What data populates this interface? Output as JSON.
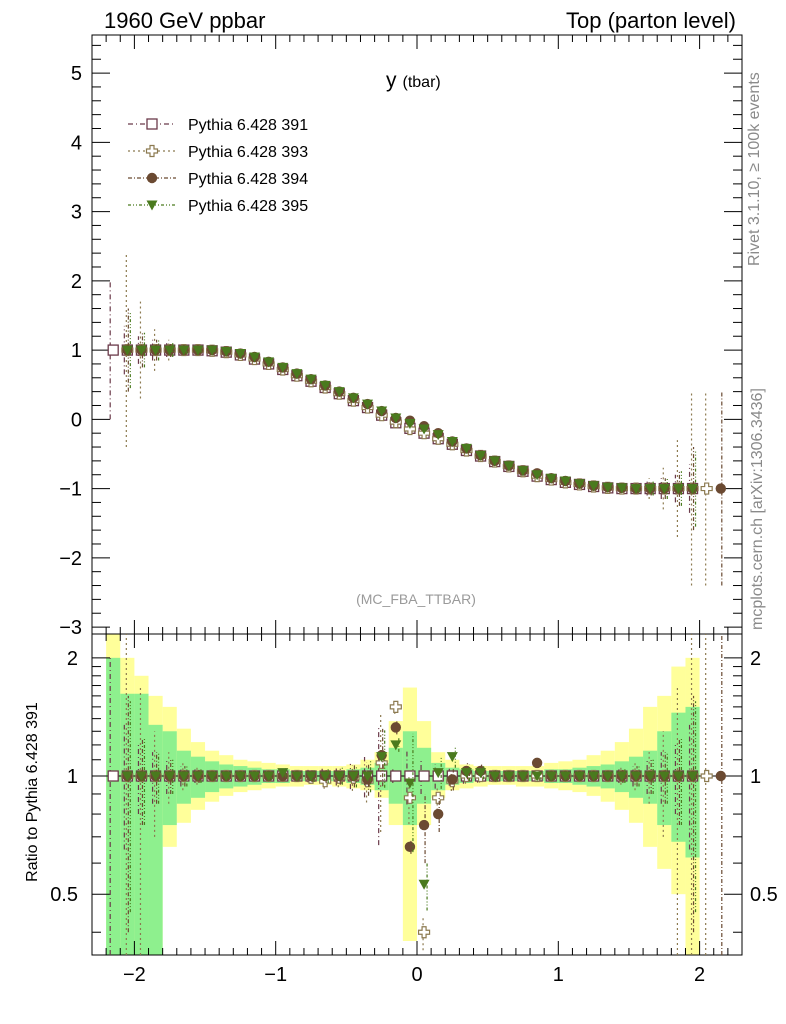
{
  "header": {
    "left": "1960 GeV ppbar",
    "right": "Top (parton level)"
  },
  "side_labels": {
    "rivet": "Rivet 3.1.10, ≥ 100k events",
    "mcplots": "mcplots.cern.ch [arXiv:1306.3436]"
  },
  "analysis_tag": "(MC_FBA_TTBAR)",
  "chart_data": [
    {
      "type": "scatter",
      "panel": "main",
      "title": "y",
      "title_suffix": "(tbar)",
      "xlabel": "",
      "ylabel": "",
      "xlim": [
        -2.3,
        2.3
      ],
      "ylim": [
        -3.1,
        5.55
      ],
      "x_ticks": [
        -2,
        -1,
        0,
        1,
        2
      ],
      "x_tick_labels": [
        "−2",
        "−1",
        "0",
        "1",
        "2"
      ],
      "y_ticks": [
        -3,
        -2,
        -1,
        0,
        1,
        2,
        3,
        4,
        5
      ],
      "y_tick_labels": [
        "−3",
        "−2",
        "−1",
        "0",
        "1",
        "2",
        "3",
        "4",
        "5"
      ],
      "legend_position": "top-left",
      "x": [
        -2.15,
        -2.05,
        -1.95,
        -1.85,
        -1.75,
        -1.65,
        -1.55,
        -1.45,
        -1.35,
        -1.25,
        -1.15,
        -1.05,
        -0.95,
        -0.85,
        -0.75,
        -0.65,
        -0.55,
        -0.45,
        -0.35,
        -0.25,
        -0.15,
        -0.05,
        0.05,
        0.15,
        0.25,
        0.35,
        0.45,
        0.55,
        0.65,
        0.75,
        0.85,
        0.95,
        1.05,
        1.15,
        1.25,
        1.35,
        1.45,
        1.55,
        1.65,
        1.75,
        1.85,
        1.95,
        2.05,
        2.15
      ],
      "series": [
        {
          "name": "Pythia 6.428 391",
          "color": "#6b3a4a",
          "marker": "open-square",
          "values": [
            1.0,
            1.0,
            1.0,
            1.0,
            1.0,
            1.0,
            1.0,
            0.99,
            0.97,
            0.93,
            0.87,
            0.8,
            0.72,
            0.63,
            0.55,
            0.46,
            0.37,
            0.27,
            0.17,
            0.06,
            -0.05,
            -0.13,
            -0.2,
            -0.28,
            -0.36,
            -0.45,
            -0.53,
            -0.61,
            -0.68,
            -0.75,
            -0.82,
            -0.87,
            -0.91,
            -0.94,
            -0.97,
            -0.99,
            -1.0,
            -1.0,
            -1.0,
            -1.0,
            -1.0,
            -1.0,
            null,
            null
          ],
          "errors": [
            1.0,
            0.35,
            0.2,
            0.15,
            0.1,
            0.06,
            0.04,
            0.03,
            0.02,
            0.02,
            0.02,
            0.02,
            0.02,
            0.02,
            0.02,
            0.02,
            0.02,
            0.02,
            0.02,
            0.02,
            0.02,
            0.02,
            0.02,
            0.02,
            0.02,
            0.02,
            0.02,
            0.02,
            0.02,
            0.02,
            0.02,
            0.02,
            0.02,
            0.02,
            0.02,
            0.03,
            0.04,
            0.06,
            0.1,
            0.15,
            0.2,
            0.35,
            null,
            null
          ]
        },
        {
          "name": "Pythia 6.428 393",
          "color": "#8c7a50",
          "marker": "open-cross",
          "values": [
            null,
            1.0,
            1.0,
            1.0,
            1.0,
            1.0,
            1.0,
            0.99,
            0.97,
            0.93,
            0.87,
            0.8,
            0.72,
            0.63,
            0.55,
            0.46,
            0.37,
            0.27,
            0.17,
            0.06,
            -0.04,
            -0.14,
            -0.2,
            -0.28,
            -0.36,
            -0.45,
            -0.53,
            -0.61,
            -0.68,
            -0.75,
            -0.82,
            -0.87,
            -0.91,
            -0.94,
            -0.97,
            -0.99,
            -1.0,
            -1.0,
            -1.0,
            -1.0,
            -1.0,
            -1.0,
            -1.0,
            null
          ],
          "errors": [
            null,
            1.4,
            0.7,
            0.3,
            0.15,
            0.08,
            0.05,
            0.03,
            0.02,
            0.02,
            0.02,
            0.02,
            0.02,
            0.02,
            0.02,
            0.02,
            0.02,
            0.02,
            0.02,
            0.02,
            0.02,
            0.02,
            0.02,
            0.02,
            0.02,
            0.02,
            0.02,
            0.02,
            0.02,
            0.02,
            0.02,
            0.02,
            0.02,
            0.02,
            0.02,
            0.03,
            0.05,
            0.08,
            0.15,
            0.3,
            0.7,
            1.4,
            1.4,
            null
          ]
        },
        {
          "name": "Pythia 6.428 394",
          "color": "#6b4a32",
          "marker": "filled-circle",
          "values": [
            null,
            1.0,
            1.0,
            1.0,
            1.0,
            1.0,
            1.0,
            1.0,
            0.98,
            0.95,
            0.9,
            0.83,
            0.75,
            0.66,
            0.58,
            0.49,
            0.4,
            0.31,
            0.22,
            0.12,
            0.02,
            -0.02,
            -0.1,
            -0.2,
            -0.32,
            -0.42,
            -0.52,
            -0.6,
            -0.67,
            -0.74,
            -0.78,
            -0.85,
            -0.89,
            -0.93,
            -0.96,
            -0.98,
            -0.99,
            -1.0,
            -1.0,
            -1.0,
            -1.0,
            -1.0,
            null,
            -1.0
          ],
          "errors": [
            null,
            0.6,
            0.25,
            0.15,
            0.1,
            0.06,
            0.04,
            0.03,
            0.02,
            0.02,
            0.02,
            0.02,
            0.02,
            0.02,
            0.02,
            0.02,
            0.02,
            0.02,
            0.02,
            0.02,
            0.02,
            0.02,
            0.02,
            0.02,
            0.02,
            0.02,
            0.02,
            0.02,
            0.02,
            0.02,
            0.02,
            0.02,
            0.02,
            0.02,
            0.02,
            0.03,
            0.04,
            0.06,
            0.1,
            0.15,
            0.25,
            0.6,
            null,
            1.4
          ]
        },
        {
          "name": "Pythia 6.428 395",
          "color": "#4a7a1e",
          "marker": "filled-triangle-down",
          "values": [
            null,
            1.0,
            1.0,
            1.0,
            1.0,
            1.0,
            1.0,
            1.0,
            0.98,
            0.95,
            0.9,
            0.83,
            0.75,
            0.66,
            0.58,
            0.49,
            0.4,
            0.31,
            0.22,
            0.12,
            0.02,
            -0.06,
            -0.14,
            -0.22,
            -0.32,
            -0.42,
            -0.52,
            -0.6,
            -0.67,
            -0.74,
            -0.8,
            -0.85,
            -0.89,
            -0.93,
            -0.96,
            -0.98,
            -0.99,
            -1.0,
            -1.0,
            -1.0,
            -1.0,
            -1.0,
            null,
            null
          ],
          "errors": [
            null,
            0.55,
            0.25,
            0.15,
            0.1,
            0.06,
            0.04,
            0.03,
            0.02,
            0.02,
            0.02,
            0.02,
            0.02,
            0.02,
            0.02,
            0.02,
            0.02,
            0.02,
            0.02,
            0.02,
            0.02,
            0.02,
            0.02,
            0.02,
            0.02,
            0.02,
            0.02,
            0.02,
            0.02,
            0.02,
            0.02,
            0.02,
            0.02,
            0.02,
            0.02,
            0.03,
            0.04,
            0.06,
            0.1,
            0.15,
            0.25,
            0.55,
            null,
            null
          ]
        }
      ]
    },
    {
      "type": "scatter",
      "panel": "ratio",
      "ylabel": "Ratio to Pythia 6.428 391",
      "xlim": [
        -2.3,
        2.3
      ],
      "ylim": [
        0.35,
        2.3
      ],
      "log_y": true,
      "x_ticks": [
        -2,
        -1,
        0,
        1,
        2
      ],
      "x_tick_labels": [
        "−2",
        "−1",
        "0",
        "1",
        "2"
      ],
      "y_ticks": [
        0.5,
        1,
        2
      ],
      "y_tick_labels": [
        "0.5",
        "1",
        "2"
      ],
      "reference_line": 1,
      "band_edges": [
        -2.2,
        -2.1,
        -2.0,
        -1.9,
        -1.8,
        -1.7,
        -1.6,
        -1.5,
        -1.4,
        -1.3,
        -1.2,
        -1.1,
        -1.0,
        -0.9,
        -0.8,
        -0.7,
        -0.6,
        -0.5,
        -0.4,
        -0.3,
        -0.2,
        -0.1,
        0.0,
        0.1,
        0.2,
        0.3,
        0.4,
        0.5,
        0.6,
        0.7,
        0.8,
        0.9,
        1.0,
        1.1,
        1.2,
        1.3,
        1.4,
        1.5,
        1.6,
        1.7,
        1.8,
        1.9,
        2.0
      ],
      "band_inner": [
        [
          0.35,
          2.0
        ],
        [
          0.35,
          1.62
        ],
        [
          0.35,
          1.62
        ],
        [
          0.35,
          1.35
        ],
        [
          0.75,
          1.3
        ],
        [
          0.85,
          1.16
        ],
        [
          0.88,
          1.12
        ],
        [
          0.91,
          1.09
        ],
        [
          0.93,
          1.07
        ],
        [
          0.94,
          1.06
        ],
        [
          0.95,
          1.05
        ],
        [
          0.96,
          1.04
        ],
        [
          0.96,
          1.04
        ],
        [
          0.97,
          1.03
        ],
        [
          0.97,
          1.03
        ],
        [
          0.97,
          1.03
        ],
        [
          0.97,
          1.03
        ],
        [
          0.96,
          1.04
        ],
        [
          0.95,
          1.05
        ],
        [
          0.92,
          1.08
        ],
        [
          0.85,
          1.18
        ],
        [
          0.75,
          1.3
        ],
        [
          0.85,
          1.18
        ],
        [
          0.92,
          1.08
        ],
        [
          0.95,
          1.05
        ],
        [
          0.96,
          1.04
        ],
        [
          0.97,
          1.03
        ],
        [
          0.97,
          1.03
        ],
        [
          0.97,
          1.03
        ],
        [
          0.97,
          1.03
        ],
        [
          0.97,
          1.03
        ],
        [
          0.96,
          1.04
        ],
        [
          0.96,
          1.04
        ],
        [
          0.95,
          1.05
        ],
        [
          0.94,
          1.06
        ],
        [
          0.93,
          1.07
        ],
        [
          0.91,
          1.09
        ],
        [
          0.88,
          1.12
        ],
        [
          0.85,
          1.16
        ],
        [
          0.75,
          1.3
        ],
        [
          0.68,
          1.45
        ],
        [
          0.62,
          1.5
        ]
      ],
      "band_outer": [
        [
          0.35,
          2.3
        ],
        [
          0.35,
          2.0
        ],
        [
          0.35,
          1.8
        ],
        [
          0.35,
          1.6
        ],
        [
          0.66,
          1.5
        ],
        [
          0.76,
          1.32
        ],
        [
          0.82,
          1.22
        ],
        [
          0.86,
          1.16
        ],
        [
          0.89,
          1.13
        ],
        [
          0.91,
          1.1
        ],
        [
          0.92,
          1.09
        ],
        [
          0.93,
          1.08
        ],
        [
          0.94,
          1.07
        ],
        [
          0.94,
          1.06
        ],
        [
          0.95,
          1.06
        ],
        [
          0.95,
          1.06
        ],
        [
          0.94,
          1.06
        ],
        [
          0.93,
          1.07
        ],
        [
          0.92,
          1.1
        ],
        [
          0.88,
          1.15
        ],
        [
          0.75,
          1.38
        ],
        [
          0.38,
          1.68
        ],
        [
          0.75,
          1.38
        ],
        [
          0.88,
          1.15
        ],
        [
          0.92,
          1.1
        ],
        [
          0.93,
          1.07
        ],
        [
          0.94,
          1.06
        ],
        [
          0.95,
          1.06
        ],
        [
          0.95,
          1.06
        ],
        [
          0.94,
          1.06
        ],
        [
          0.94,
          1.06
        ],
        [
          0.93,
          1.08
        ],
        [
          0.92,
          1.09
        ],
        [
          0.91,
          1.1
        ],
        [
          0.89,
          1.13
        ],
        [
          0.86,
          1.16
        ],
        [
          0.82,
          1.22
        ],
        [
          0.76,
          1.32
        ],
        [
          0.66,
          1.5
        ],
        [
          0.58,
          1.6
        ],
        [
          0.5,
          1.9
        ],
        [
          0.35,
          2.0
        ]
      ],
      "series": [
        {
          "name": "Pythia 6.428 391",
          "values": [
            1.0,
            1.0,
            1.0,
            1.0,
            1.0,
            1.0,
            1.0,
            1.0,
            1.0,
            1.0,
            1.0,
            1.0,
            1.0,
            1.0,
            1.0,
            1.0,
            1.0,
            1.0,
            1.0,
            1.0,
            1.0,
            1.0,
            1.0,
            1.0,
            1.0,
            1.0,
            1.0,
            1.0,
            1.0,
            1.0,
            1.0,
            1.0,
            1.0,
            1.0,
            1.0,
            1.0,
            1.0,
            1.0,
            1.0,
            1.0,
            1.0,
            1.0,
            null,
            null
          ]
        },
        {
          "name": "Pythia 6.428 393",
          "values": [
            null,
            1.0,
            1.0,
            1.0,
            1.0,
            1.0,
            1.0,
            1.0,
            1.0,
            1.0,
            1.0,
            1.0,
            1.0,
            1.0,
            0.99,
            0.97,
            0.99,
            0.99,
            0.97,
            1.08,
            1.5,
            0.88,
            0.4,
            0.88,
            0.97,
            1.0,
            1.0,
            1.0,
            1.0,
            1.0,
            1.0,
            1.0,
            1.0,
            1.0,
            1.0,
            1.0,
            1.0,
            1.0,
            1.0,
            1.0,
            1.0,
            1.0,
            1.0,
            null
          ]
        },
        {
          "name": "Pythia 6.428 394",
          "values": [
            null,
            1.0,
            1.0,
            1.0,
            1.0,
            1.0,
            1.0,
            1.0,
            1.0,
            1.0,
            1.0,
            1.0,
            1.0,
            1.0,
            1.0,
            1.0,
            1.0,
            1.0,
            0.98,
            1.13,
            1.33,
            0.66,
            0.75,
            0.8,
            0.98,
            1.03,
            1.03,
            1.0,
            1.0,
            1.0,
            1.08,
            1.0,
            1.0,
            1.0,
            1.0,
            1.0,
            1.0,
            1.0,
            1.0,
            1.0,
            1.0,
            1.0,
            null,
            1.0
          ]
        },
        {
          "name": "Pythia 6.428 395",
          "values": [
            null,
            1.0,
            1.0,
            1.0,
            1.0,
            1.0,
            1.0,
            1.0,
            1.0,
            1.0,
            1.0,
            1.0,
            1.02,
            1.0,
            1.0,
            1.0,
            1.0,
            1.0,
            1.0,
            1.12,
            1.2,
            0.96,
            0.53,
            1.02,
            1.12,
            1.02,
            1.02,
            1.0,
            1.0,
            1.0,
            1.0,
            1.0,
            1.0,
            1.0,
            1.0,
            1.0,
            1.0,
            1.0,
            1.0,
            1.0,
            1.0,
            1.0,
            null,
            null
          ]
        }
      ]
    }
  ]
}
